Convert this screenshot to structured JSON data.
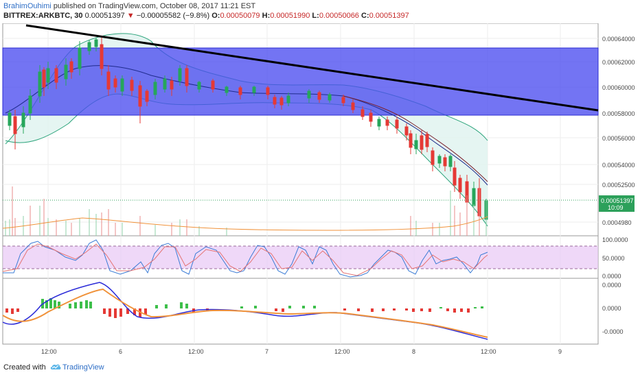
{
  "header": {
    "author": "BrahimOuhimi",
    "published_text": "published on TradingView.com, October 08, 2017 11:21 EST",
    "symbol": "BITTREX:ARKBTC, 30",
    "last_price": "0.00051397",
    "change_arrow": "▼",
    "change": "−0.00005582 (−9.8%)",
    "o_label": "O:",
    "o_value": "0.00050079",
    "h_label": "H:",
    "h_value": "0.00051990",
    "l_label": "L:",
    "l_value": "0.00050066",
    "c_label": "C:",
    "c_value": "0.00051397"
  },
  "price_axis": [
    "0.00064000",
    "0.00062000",
    "0.00060000",
    "0.00058000",
    "0.00056000",
    "0.00054000",
    "0.00052500",
    "0.00051397",
    "10:09",
    "0.0004980"
  ],
  "stoch_axis": [
    "100.0000",
    "50.0000",
    "0.0000"
  ],
  "macd_axis": [
    "0.0000",
    "0.0000",
    "-0.0000"
  ],
  "time_axis": [
    "12:00",
    "6",
    "12:00",
    "7",
    "12:00",
    "8",
    "12:00",
    "9"
  ],
  "footer": {
    "created_with": "Created with",
    "brand": "TradingView",
    "brand_icon": "tradingview-cloud-icon"
  },
  "colors": {
    "resistance_zone": "#4b4df0",
    "bull": "#26a65b",
    "bear": "#e53935",
    "trendline": "#000000",
    "price_tag": "#2ca05a"
  }
}
